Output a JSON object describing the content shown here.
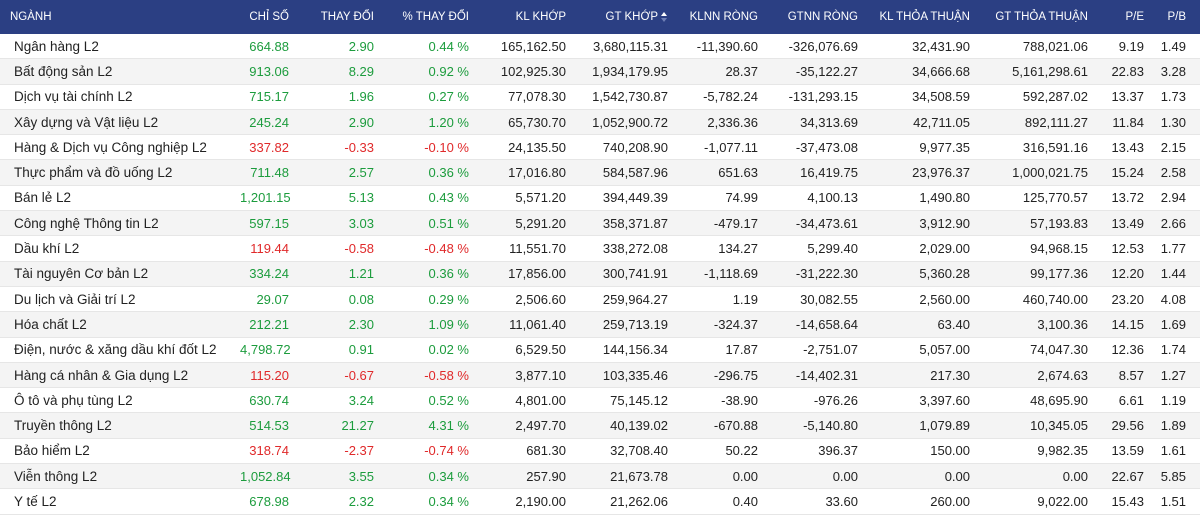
{
  "headers": {
    "name": "NGÀNH",
    "index": "CHỈ SỐ",
    "change": "THAY ĐỔI",
    "pct_change": "% THAY ĐỔI",
    "matched_volume": "KL KHỚP",
    "matched_value": "GT KHỚP",
    "foreign_net_volume": "KLNN RÒNG",
    "foreign_net_value": "GTNN RÒNG",
    "negotiated_volume": "KL THỎA THUẬN",
    "negotiated_value": "GT THỎA THUẬN",
    "pe": "P/E",
    "pb": "P/B"
  },
  "sort": {
    "column": "matched_value",
    "icon": "sort-icon"
  },
  "colors": {
    "header_bg": "#2b3f83",
    "up": "#1c9c3d",
    "down": "#e0292a"
  },
  "rows": [
    {
      "name": "Ngân hàng L2",
      "index": "664.88",
      "change": "2.90",
      "pct": "0.44 %",
      "kl": "165,162.50",
      "gt": "3,680,115.31",
      "klnn": "-11,390.60",
      "gtnn": "-326,076.69",
      "kltt": "32,431.90",
      "gttt": "788,021.06",
      "pe": "9.19",
      "pb": "1.49",
      "trend": "up"
    },
    {
      "name": "Bất động sản L2",
      "index": "913.06",
      "change": "8.29",
      "pct": "0.92 %",
      "kl": "102,925.30",
      "gt": "1,934,179.95",
      "klnn": "28.37",
      "gtnn": "-35,122.27",
      "kltt": "34,666.68",
      "gttt": "5,161,298.61",
      "pe": "22.83",
      "pb": "3.28",
      "trend": "up"
    },
    {
      "name": "Dịch vụ tài chính L2",
      "index": "715.17",
      "change": "1.96",
      "pct": "0.27 %",
      "kl": "77,078.30",
      "gt": "1,542,730.87",
      "klnn": "-5,782.24",
      "gtnn": "-131,293.15",
      "kltt": "34,508.59",
      "gttt": "592,287.02",
      "pe": "13.37",
      "pb": "1.73",
      "trend": "up"
    },
    {
      "name": "Xây dựng và Vật liệu L2",
      "index": "245.24",
      "change": "2.90",
      "pct": "1.20 %",
      "kl": "65,730.70",
      "gt": "1,052,900.72",
      "klnn": "2,336.36",
      "gtnn": "34,313.69",
      "kltt": "42,711.05",
      "gttt": "892,111.27",
      "pe": "11.84",
      "pb": "1.30",
      "trend": "up"
    },
    {
      "name": "Hàng & Dịch vụ Công nghiệp L2",
      "index": "337.82",
      "change": "-0.33",
      "pct": "-0.10 %",
      "kl": "24,135.50",
      "gt": "740,208.90",
      "klnn": "-1,077.11",
      "gtnn": "-37,473.08",
      "kltt": "9,977.35",
      "gttt": "316,591.16",
      "pe": "13.43",
      "pb": "2.15",
      "trend": "down"
    },
    {
      "name": "Thực phẩm và đồ uống L2",
      "index": "711.48",
      "change": "2.57",
      "pct": "0.36 %",
      "kl": "17,016.80",
      "gt": "584,587.96",
      "klnn": "651.63",
      "gtnn": "16,419.75",
      "kltt": "23,976.37",
      "gttt": "1,000,021.75",
      "pe": "15.24",
      "pb": "2.58",
      "trend": "up"
    },
    {
      "name": "Bán lẻ L2",
      "index": "1,201.15",
      "change": "5.13",
      "pct": "0.43 %",
      "kl": "5,571.20",
      "gt": "394,449.39",
      "klnn": "74.99",
      "gtnn": "4,100.13",
      "kltt": "1,490.80",
      "gttt": "125,770.57",
      "pe": "13.72",
      "pb": "2.94",
      "trend": "up"
    },
    {
      "name": "Công nghệ Thông tin L2",
      "index": "597.15",
      "change": "3.03",
      "pct": "0.51 %",
      "kl": "5,291.20",
      "gt": "358,371.87",
      "klnn": "-479.17",
      "gtnn": "-34,473.61",
      "kltt": "3,912.90",
      "gttt": "57,193.83",
      "pe": "13.49",
      "pb": "2.66",
      "trend": "up"
    },
    {
      "name": "Dầu khí L2",
      "index": "119.44",
      "change": "-0.58",
      "pct": "-0.48 %",
      "kl": "11,551.70",
      "gt": "338,272.08",
      "klnn": "134.27",
      "gtnn": "5,299.40",
      "kltt": "2,029.00",
      "gttt": "94,968.15",
      "pe": "12.53",
      "pb": "1.77",
      "trend": "down"
    },
    {
      "name": "Tài nguyên Cơ bản L2",
      "index": "334.24",
      "change": "1.21",
      "pct": "0.36 %",
      "kl": "17,856.00",
      "gt": "300,741.91",
      "klnn": "-1,118.69",
      "gtnn": "-31,222.30",
      "kltt": "5,360.28",
      "gttt": "99,177.36",
      "pe": "12.20",
      "pb": "1.44",
      "trend": "up"
    },
    {
      "name": "Du lịch và Giải trí L2",
      "index": "29.07",
      "change": "0.08",
      "pct": "0.29 %",
      "kl": "2,506.60",
      "gt": "259,964.27",
      "klnn": "1.19",
      "gtnn": "30,082.55",
      "kltt": "2,560.00",
      "gttt": "460,740.00",
      "pe": "23.20",
      "pb": "4.08",
      "trend": "up"
    },
    {
      "name": "Hóa chất L2",
      "index": "212.21",
      "change": "2.30",
      "pct": "1.09 %",
      "kl": "11,061.40",
      "gt": "259,713.19",
      "klnn": "-324.37",
      "gtnn": "-14,658.64",
      "kltt": "63.40",
      "gttt": "3,100.36",
      "pe": "14.15",
      "pb": "1.69",
      "trend": "up"
    },
    {
      "name": "Điện, nước & xăng dầu khí đốt L2",
      "index": "4,798.72",
      "change": "0.91",
      "pct": "0.02 %",
      "kl": "6,529.50",
      "gt": "144,156.34",
      "klnn": "17.87",
      "gtnn": "-2,751.07",
      "kltt": "5,057.00",
      "gttt": "74,047.30",
      "pe": "12.36",
      "pb": "1.74",
      "trend": "up"
    },
    {
      "name": "Hàng cá nhân & Gia dụng L2",
      "index": "115.20",
      "change": "-0.67",
      "pct": "-0.58 %",
      "kl": "3,877.10",
      "gt": "103,335.46",
      "klnn": "-296.75",
      "gtnn": "-14,402.31",
      "kltt": "217.30",
      "gttt": "2,674.63",
      "pe": "8.57",
      "pb": "1.27",
      "trend": "down"
    },
    {
      "name": "Ô tô và phụ tùng L2",
      "index": "630.74",
      "change": "3.24",
      "pct": "0.52 %",
      "kl": "4,801.00",
      "gt": "75,145.12",
      "klnn": "-38.90",
      "gtnn": "-976.26",
      "kltt": "3,397.60",
      "gttt": "48,695.90",
      "pe": "6.61",
      "pb": "1.19",
      "trend": "up"
    },
    {
      "name": "Truyền thông L2",
      "index": "514.53",
      "change": "21.27",
      "pct": "4.31 %",
      "kl": "2,497.70",
      "gt": "40,139.02",
      "klnn": "-670.88",
      "gtnn": "-5,140.80",
      "kltt": "1,079.89",
      "gttt": "10,345.05",
      "pe": "29.56",
      "pb": "1.89",
      "trend": "up"
    },
    {
      "name": "Bảo hiểm L2",
      "index": "318.74",
      "change": "-2.37",
      "pct": "-0.74 %",
      "kl": "681.30",
      "gt": "32,708.40",
      "klnn": "50.22",
      "gtnn": "396.37",
      "kltt": "150.00",
      "gttt": "9,982.35",
      "pe": "13.59",
      "pb": "1.61",
      "trend": "down"
    },
    {
      "name": "Viễn thông L2",
      "index": "1,052.84",
      "change": "3.55",
      "pct": "0.34 %",
      "kl": "257.90",
      "gt": "21,673.78",
      "klnn": "0.00",
      "gtnn": "0.00",
      "kltt": "0.00",
      "gttt": "0.00",
      "pe": "22.67",
      "pb": "5.85",
      "trend": "up"
    },
    {
      "name": "Y tế L2",
      "index": "678.98",
      "change": "2.32",
      "pct": "0.34 %",
      "kl": "2,190.00",
      "gt": "21,262.06",
      "klnn": "0.40",
      "gtnn": "33.60",
      "kltt": "260.00",
      "gttt": "9,022.00",
      "pe": "15.43",
      "pb": "1.51",
      "trend": "up"
    }
  ]
}
